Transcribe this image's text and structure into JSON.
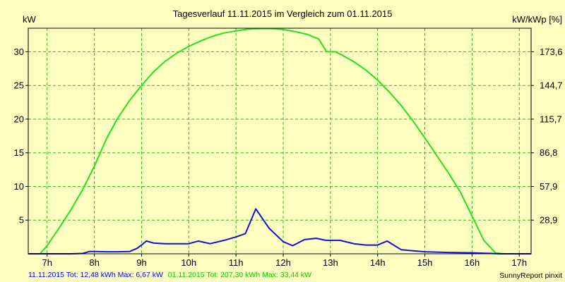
{
  "chart_data": {
    "type": "line",
    "title": "Tagesverlauf 11.11.2015 im Vergleich zum 01.11.2015",
    "ylabel": "kW",
    "y2label": "kW/kWp [%]",
    "ylim": [
      0,
      33.5
    ],
    "xlim": [
      6.6,
      17.25
    ],
    "yticks": [
      5,
      10,
      15,
      20,
      25,
      30
    ],
    "y2ticks": [
      {
        "at": 5,
        "label": "28,9"
      },
      {
        "at": 10,
        "label": "57,9"
      },
      {
        "at": 15,
        "label": "86,8"
      },
      {
        "at": 20,
        "label": "115,7"
      },
      {
        "at": 25,
        "label": "144,7"
      },
      {
        "at": 30,
        "label": "173,6"
      }
    ],
    "xticks": [
      {
        "at": 7,
        "label": "7h"
      },
      {
        "at": 8,
        "label": "8h"
      },
      {
        "at": 9,
        "label": "9h"
      },
      {
        "at": 10,
        "label": "10h"
      },
      {
        "at": 11,
        "label": "11h"
      },
      {
        "at": 12,
        "label": "12h"
      },
      {
        "at": 13,
        "label": "13h"
      },
      {
        "at": 14,
        "label": "14h"
      },
      {
        "at": 15,
        "label": "15h"
      },
      {
        "at": 16,
        "label": "16h"
      },
      {
        "at": 17,
        "label": "17h"
      }
    ],
    "grid": true,
    "series": [
      {
        "name": "01.11.2015",
        "color": "#22e022",
        "points": [
          [
            6.6,
            0
          ],
          [
            6.85,
            0
          ],
          [
            7.0,
            1.2
          ],
          [
            7.25,
            3.8
          ],
          [
            7.5,
            6.5
          ],
          [
            7.75,
            9.5
          ],
          [
            8.0,
            13.0
          ],
          [
            8.25,
            17.0
          ],
          [
            8.5,
            20.2
          ],
          [
            8.75,
            22.8
          ],
          [
            9.0,
            25.0
          ],
          [
            9.25,
            27.0
          ],
          [
            9.5,
            28.6
          ],
          [
            9.75,
            29.8
          ],
          [
            10.0,
            30.8
          ],
          [
            10.25,
            31.6
          ],
          [
            10.5,
            32.3
          ],
          [
            10.75,
            32.8
          ],
          [
            11.0,
            33.1
          ],
          [
            11.25,
            33.35
          ],
          [
            11.5,
            33.44
          ],
          [
            11.75,
            33.44
          ],
          [
            12.0,
            33.3
          ],
          [
            12.25,
            33.0
          ],
          [
            12.5,
            32.6
          ],
          [
            12.75,
            31.9
          ],
          [
            12.92,
            30.0
          ],
          [
            13.1,
            30.0
          ],
          [
            13.25,
            29.5
          ],
          [
            13.5,
            28.5
          ],
          [
            13.75,
            27.3
          ],
          [
            14.0,
            25.8
          ],
          [
            14.25,
            24.0
          ],
          [
            14.5,
            22.0
          ],
          [
            14.75,
            19.7
          ],
          [
            15.0,
            17.2
          ],
          [
            15.25,
            14.6
          ],
          [
            15.5,
            12.0
          ],
          [
            15.75,
            9.2
          ],
          [
            16.0,
            5.6
          ],
          [
            16.25,
            2.0
          ],
          [
            16.5,
            0.1
          ],
          [
            16.7,
            0
          ],
          [
            17.25,
            0
          ]
        ]
      },
      {
        "name": "11.11.2015",
        "color": "#1010e0",
        "points": [
          [
            6.6,
            0
          ],
          [
            7.0,
            0
          ],
          [
            7.5,
            0
          ],
          [
            7.75,
            0.05
          ],
          [
            7.9,
            0.35
          ],
          [
            8.0,
            0.35
          ],
          [
            8.25,
            0.3
          ],
          [
            8.5,
            0.3
          ],
          [
            8.75,
            0.35
          ],
          [
            8.9,
            0.8
          ],
          [
            9.0,
            1.3
          ],
          [
            9.1,
            1.9
          ],
          [
            9.25,
            1.6
          ],
          [
            9.5,
            1.5
          ],
          [
            9.75,
            1.5
          ],
          [
            10.0,
            1.5
          ],
          [
            10.2,
            1.9
          ],
          [
            10.45,
            1.5
          ],
          [
            10.75,
            2.0
          ],
          [
            11.0,
            2.5
          ],
          [
            11.2,
            3.0
          ],
          [
            11.42,
            6.67
          ],
          [
            11.7,
            3.8
          ],
          [
            12.0,
            1.8
          ],
          [
            12.2,
            1.2
          ],
          [
            12.45,
            2.1
          ],
          [
            12.7,
            2.3
          ],
          [
            12.9,
            2.0
          ],
          [
            13.2,
            2.0
          ],
          [
            13.5,
            1.5
          ],
          [
            13.75,
            1.3
          ],
          [
            14.0,
            1.3
          ],
          [
            14.2,
            1.9
          ],
          [
            14.5,
            0.6
          ],
          [
            14.75,
            0.45
          ],
          [
            15.0,
            0.3
          ],
          [
            15.5,
            0.2
          ],
          [
            16.0,
            0.15
          ],
          [
            16.4,
            0.05
          ],
          [
            16.6,
            0
          ],
          [
            17.25,
            0
          ]
        ]
      }
    ]
  },
  "footer": {
    "left_blue": "11.11.2015 Tot: 12,48 kWh Max: 6,67 kW",
    "left_green": "01.11.2015 Tot: 207,30 kWh Max: 33,44 kW",
    "right": "SunnyReport pinxit"
  },
  "colors": {
    "background": "#ffffc0",
    "grid": "#22c022",
    "blue_text": "#0000ff",
    "green_text": "#00cc00"
  }
}
